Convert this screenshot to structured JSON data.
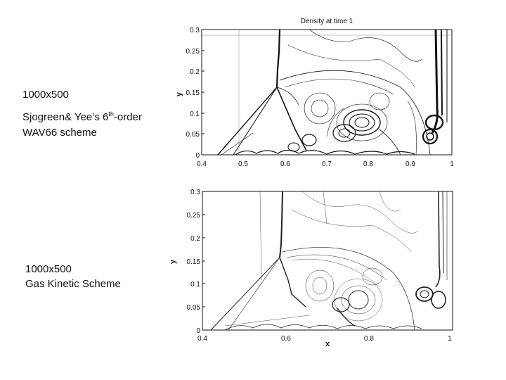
{
  "captions": {
    "top": {
      "resolution": "1000x500",
      "line1_pre": "Sjogreen& Yee’s 6",
      "line1_sup": "th",
      "line1_post": "-order",
      "line2": "WAV66 scheme"
    },
    "bottom": {
      "resolution": "1000x500",
      "line2": "Gas Kinetic Scheme"
    }
  },
  "top_plot": {
    "title": "Density at time 1",
    "ylabel": "y",
    "xticks": [
      "0.4",
      "0.5",
      "0.6",
      "0.7",
      "0.8",
      "0.9",
      "1"
    ],
    "yticks": [
      "0",
      "0.05",
      "0.1",
      "0.15",
      "0.2",
      "0.25",
      "0.3"
    ]
  },
  "bottom_plot": {
    "xlabel": "x",
    "ylabel": "y",
    "xticks": [
      "0.4",
      "0.6",
      "0.8",
      "1"
    ],
    "yticks": [
      "0",
      "0.05",
      "0.1",
      "0.15",
      "0.2",
      "0.25",
      "0.3"
    ]
  }
}
